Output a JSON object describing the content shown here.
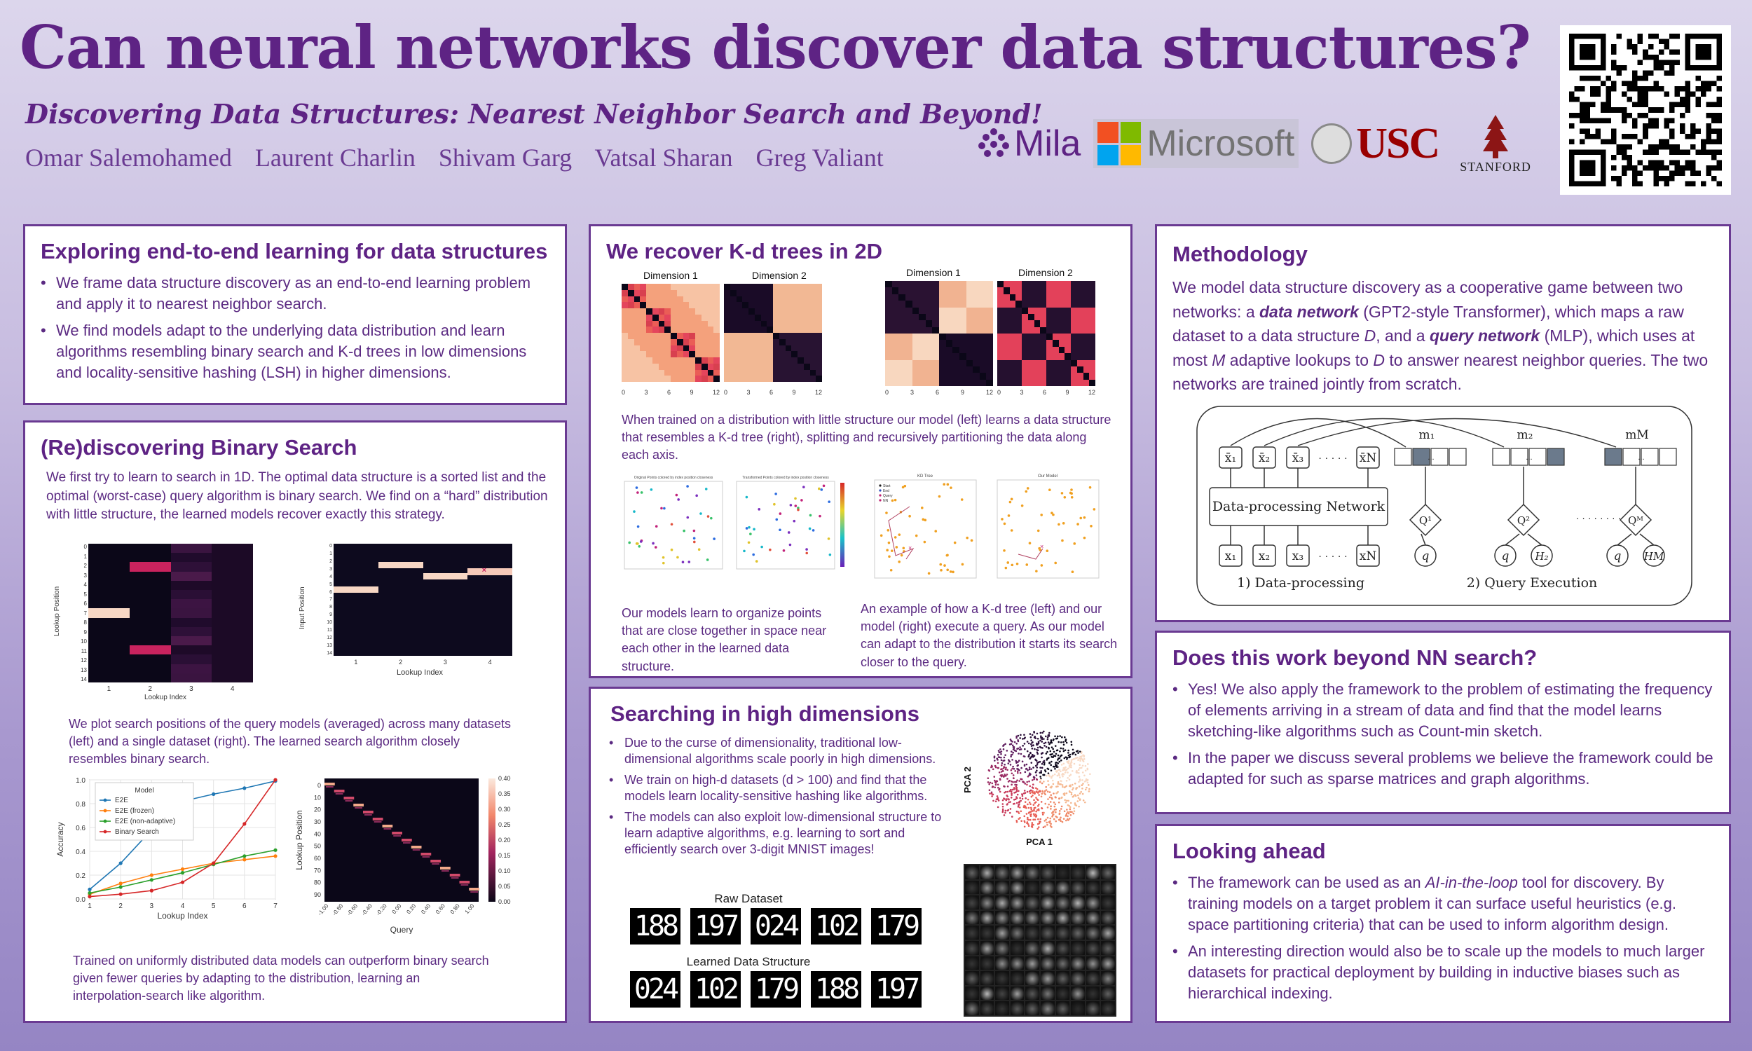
{
  "header": {
    "title": "Can neural networks discover data structures?",
    "subtitle": "Discovering Data Structures: Nearest Neighbor Search and Beyond!",
    "authors": [
      "Omar Salemohamed",
      "Laurent Charlin",
      "Shivam Garg",
      "Vatsal Sharan",
      "Greg Valiant"
    ],
    "logos": {
      "mila": "Mila",
      "microsoft": "Microsoft",
      "usc": "USC",
      "stanford": "STANFORD"
    }
  },
  "panel_explore": {
    "title": "Exploring end-to-end learning for data structures",
    "bullets": [
      "We frame data structure discovery as an end-to-end learning problem and apply it to nearest neighbor search.",
      "We find models adapt to the underlying data distribution and learn algorithms resembling binary search and K-d trees in low dimensions and locality-sensitive hashing (LSH) in higher dimensions."
    ]
  },
  "panel_binary": {
    "title": "(Re)discovering Binary Search",
    "intro": "We first try to learn to search in 1D. The optimal data structure is a sorted list and the optimal (worst-case) query algorithm is binary search. We find on a “hard” distribution with little structure, the learned models recover exactly this strategy.",
    "fig1_xlabel": "Lookup Index",
    "fig1_ylabel": "Lookup Position",
    "fig2_xlabel": "Lookup Index",
    "fig2_ylabel": "Input Position",
    "fig1_xticks": [
      "1",
      "2",
      "3",
      "4"
    ],
    "fig1_yticks": [
      "0",
      "1",
      "2",
      "3",
      "4",
      "5",
      "6",
      "7",
      "8",
      "9",
      "10",
      "11",
      "12",
      "13",
      "14"
    ],
    "caption1": "We plot search positions of the query models (averaged) across many datasets (left) and a single dataset (right). The learned search algorithm closely resembles binary search.",
    "caption2": "Trained on uniformly distributed data models can outperform binary search given fewer queries by adapting to the distribution, learning an interpolation-search like algorithm.",
    "heat_xlabel": "Query",
    "heat_ylabel": "Lookup Position",
    "heat_xticks": [
      "-1.00",
      "-0.80",
      "-0.60",
      "-0.40",
      "-0.20",
      "0.00",
      "0.20",
      "0.40",
      "0.60",
      "0.80",
      "1.00"
    ],
    "heat_yticks": [
      "0",
      "10",
      "20",
      "30",
      "40",
      "50",
      "60",
      "70",
      "80",
      "90"
    ],
    "colorbar_ticks": [
      "0.40",
      "0.35",
      "0.30",
      "0.25",
      "0.20",
      "0.15",
      "0.10",
      "0.05",
      "0.00"
    ]
  },
  "chart_data": {
    "type": "line",
    "title": "",
    "xlabel": "Lookup Index",
    "ylabel": "Accuracy",
    "legend_title": "Model",
    "x": [
      1,
      2,
      3,
      4,
      5,
      6,
      7
    ],
    "xlim": [
      1,
      7
    ],
    "ylim": [
      0,
      1.0
    ],
    "yticks": [
      "0.0",
      "0.2",
      "0.4",
      "0.6",
      "0.8",
      "1.0"
    ],
    "legend_position": "top-left",
    "series": [
      {
        "name": "E2E",
        "color": "#1f77b4",
        "values": [
          0.08,
          0.3,
          0.58,
          0.82,
          0.88,
          0.93,
          0.99
        ]
      },
      {
        "name": "E2E (frozen)",
        "color": "#ff7f0e",
        "values": [
          0.04,
          0.13,
          0.2,
          0.25,
          0.3,
          0.33,
          0.36
        ]
      },
      {
        "name": "E2E (non-adaptive)",
        "color": "#2ca02c",
        "values": [
          0.05,
          0.1,
          0.16,
          0.22,
          0.29,
          0.36,
          0.41
        ]
      },
      {
        "name": "Binary Search",
        "color": "#d62728",
        "values": [
          0.02,
          0.04,
          0.07,
          0.14,
          0.3,
          0.63,
          1.0
        ]
      }
    ]
  },
  "panel_kd": {
    "title": "We recover K-d trees in 2D",
    "dim1": "Dimension 1",
    "dim2": "Dimension 2",
    "axis_ticks": [
      "0",
      "3",
      "6",
      "9",
      "12"
    ],
    "caption_main": "When trained on a distribution with little structure our model (left) learns a data structure that resembles a K-d tree (right), splitting and recursively partitioning the data along each axis.",
    "caption_left": "Our models learn to organize points that are close together in space near each other in the learned data structure.",
    "caption_right": "An example of how a K-d tree (left) and our model (right) execute a query. As our model can adapt to the distribution it starts its search closer to the query.",
    "scatter_titles": [
      "Original Points colored by index position closeness",
      "Transformed Points colored by index position closeness",
      "KD Tree",
      "Our Model"
    ],
    "legend_items": [
      "Start",
      "End",
      "Query",
      "NN"
    ]
  },
  "panel_high": {
    "title": "Searching in high dimensions",
    "bullets": [
      "Due to the curse of dimensionality, traditional low-dimensional algorithms scale poorly in high dimensions.",
      "We train on high-d datasets (d > 100) and find that the models learn locality-sensitive hashing like algorithms.",
      "The models can also exploit low-dimensional structure to learn adaptive algorithms, e.g. learning to sort and efficiently search over 3-digit MNIST images!"
    ],
    "raw_label": "Raw Dataset",
    "learned_label": "Learned Data Structure",
    "raw_digits": [
      "188",
      "197",
      "024",
      "102",
      "179"
    ],
    "learned_digits": [
      "024",
      "102",
      "179",
      "188",
      "197"
    ],
    "pca_x": "PCA 1",
    "pca_y": "PCA 2"
  },
  "panel_method": {
    "title": "Methodology",
    "text_parts": [
      "We model data structure discovery as a cooperative game between two networks: a ",
      "data network",
      " (GPT2-style Transformer), which maps a raw dataset to a data structure ",
      "D",
      ", and a ",
      "query network",
      " (MLP), which uses at most ",
      "M",
      " adaptive lookups to ",
      "D",
      " to answer nearest neighbor queries. The two networks are trained jointly from scratch."
    ],
    "diagram": {
      "box_label": "Data-processing Network",
      "stage1": "1) Data-processing",
      "stage2": "2) Query Execution",
      "xbar": [
        "x̄₁",
        "x̄₂",
        "x̄₃",
        "x̄N"
      ],
      "x": [
        "x₁",
        "x₂",
        "x₃",
        "xN"
      ],
      "dots": "· · · · ·",
      "m": [
        "m₁",
        "m₂",
        "mM"
      ],
      "Q": [
        "Q¹",
        "Q²",
        "Qᴹ"
      ],
      "q": "q",
      "H": [
        "H₂",
        "HM"
      ],
      "mid_dots": "· · · · · · · ·",
      "ellipsis": "..."
    }
  },
  "panel_beyond": {
    "title": "Does this work beyond NN search?",
    "bullets": [
      "Yes! We also apply the framework to the problem of estimating the frequency of elements arriving in a stream of data and find that the model learns sketching-like algorithms such as Count-min sketch.",
      "In the paper we discuss several problems we believe the framework could be adapted for such as sparse matrices and graph algorithms."
    ]
  },
  "panel_ahead": {
    "title": "Looking ahead",
    "bullet1_parts": [
      "The framework can be used as an ",
      "AI-in-the-loop",
      " tool for discovery. By training models on a target problem it can surface useful heuristics (e.g. space partitioning criteria) that can be used to inform algorithm design."
    ],
    "bullet2": "An interesting direction would also be to scale up the models to much larger datasets for practical deployment by building in inductive biases such as hierarchical indexing."
  }
}
